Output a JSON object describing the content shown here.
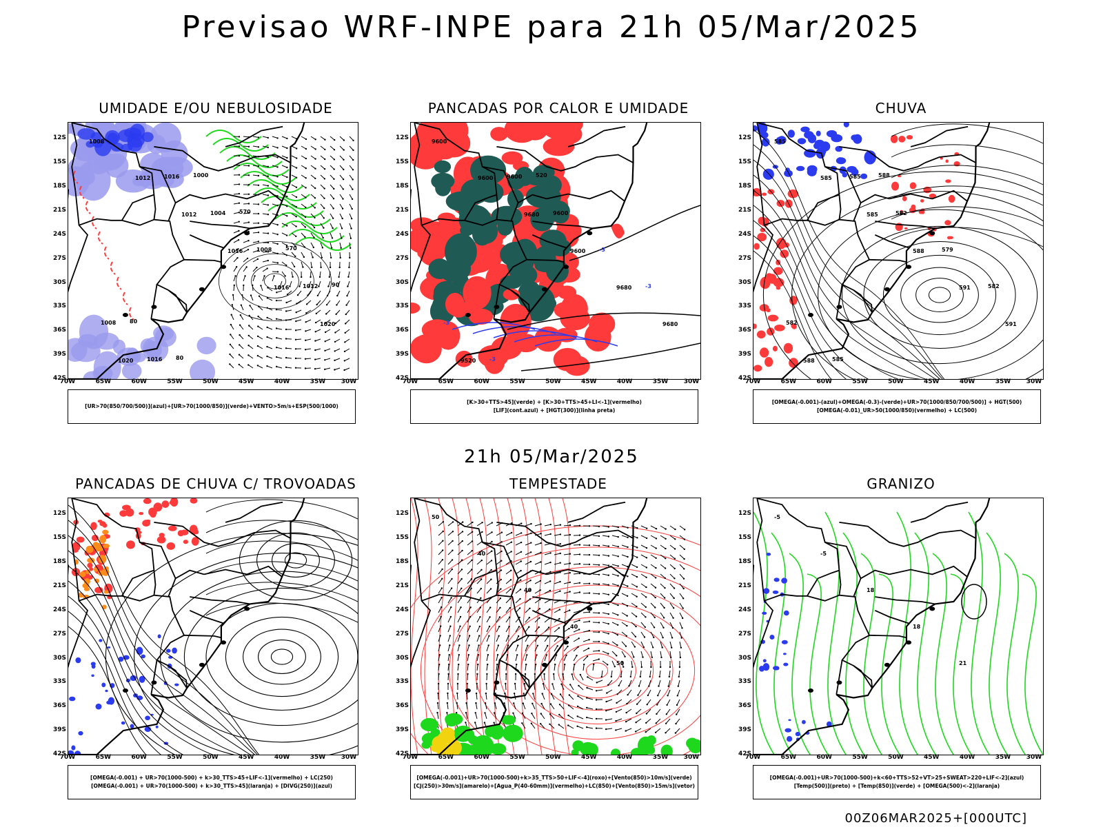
{
  "header": {
    "title": "Previsao WRF-INPE  para 21h 05/Mar/2025"
  },
  "middle": {
    "title": "21h 05/Mar/2025"
  },
  "footer": {
    "run": "00Z06MAR2025+[000UTC]"
  },
  "axes": {
    "lat": [
      "12S",
      "15S",
      "18S",
      "21S",
      "24S",
      "27S",
      "30S",
      "33S",
      "36S",
      "39S",
      "42S"
    ],
    "lon": [
      "70W",
      "65W",
      "60W",
      "55W",
      "50W",
      "45W",
      "40W",
      "35W",
      "30W"
    ]
  },
  "colors": {
    "blue": "#2b3bf0",
    "green": "#1ed81e",
    "red": "#ff3a3a",
    "teal": "#1f5a55",
    "lavender": "#9a9aee",
    "orange": "#ff8c1a",
    "yellow": "#f2d30f"
  },
  "panels": [
    {
      "title": "UMIDADE E/OU NEBULOSIDADE",
      "legend": [
        "[UR>70(850/700/500)](azul)+[UR>70(1000/850)](verde)+VENTO>5m/s+ESP(500/1000)"
      ],
      "labels": [
        "1008",
        "1012",
        "1012",
        "1016",
        "1016",
        "1020",
        "1020",
        "1016",
        "1004",
        "1008",
        "1012",
        "1008",
        "1016",
        "1000",
        "570",
        "570",
        "90",
        "80",
        "80"
      ]
    },
    {
      "title": "PANCADAS POR CALOR E UMIDADE",
      "legend": [
        "[K>30+TTS>45](verde) + [K>30+TTS>45+LI<-1](vermelho)",
        "[LIF](cont.azul) + [HGT(300)](linha preta)"
      ],
      "labels": [
        "9600",
        "9600",
        "9680",
        "9600",
        "9680",
        "9680",
        "9520",
        "9600",
        "9600",
        "-3",
        "-3",
        "-3",
        "-3",
        "520"
      ]
    },
    {
      "title": "CHUVA",
      "legend": [
        "[OMEGA(-0.001)-(azul)+OMEGA(-0.3)-(verde)+UR>70(1000/850/700/500)] + HGT(500)",
        "[OMEGA(-0.01)_UR>50(1000/850)(vermelho) + LC(500)"
      ],
      "labels": [
        "585",
        "585",
        "585",
        "588",
        "591",
        "591",
        "588",
        "585",
        "582",
        "579",
        "582",
        "582",
        "585",
        "588"
      ]
    },
    {
      "title": "PANCADAS DE CHUVA C/ TROVOADAS",
      "legend": [
        "[OMEGA(-0.001) + UR>70(1000-500) + k>30_TTS>45+LIF<-1](vermelho) + LC(250)",
        "[OMEGA(-0.001) + UR>70(1000-500) + k>30_TTS>45](laranja) + [DIVG(250)](azul)"
      ],
      "labels": []
    },
    {
      "title": "TEMPESTADE",
      "legend": [
        "[OMEGA(-0.001)+UR>70(1000-500)+k>35_TTS>50+LIF<-4](roxo)+[Vento(850)>10m/s](verde)",
        "[CJ(250)>30m/s](amarelo)+[Agua_P(40-60mm)](vermelho)+LC(850)+[Vento(850)>15m/s](vetor)"
      ],
      "labels": [
        "50",
        "40",
        "40",
        "40",
        "50"
      ]
    },
    {
      "title": "GRANIZO",
      "legend": [
        "[OMEGA(-0.001)+UR>70(1000-500)+k<60+TTS>52+VT>25+SWEAT>220+LIF<-2](azul)",
        "[Temp(500)](preto) + [Temp(850)](verde) + [OMEGA(500)<-2](laranja)"
      ],
      "labels": [
        "-5",
        "-5",
        "18",
        "18",
        "21"
      ]
    }
  ]
}
